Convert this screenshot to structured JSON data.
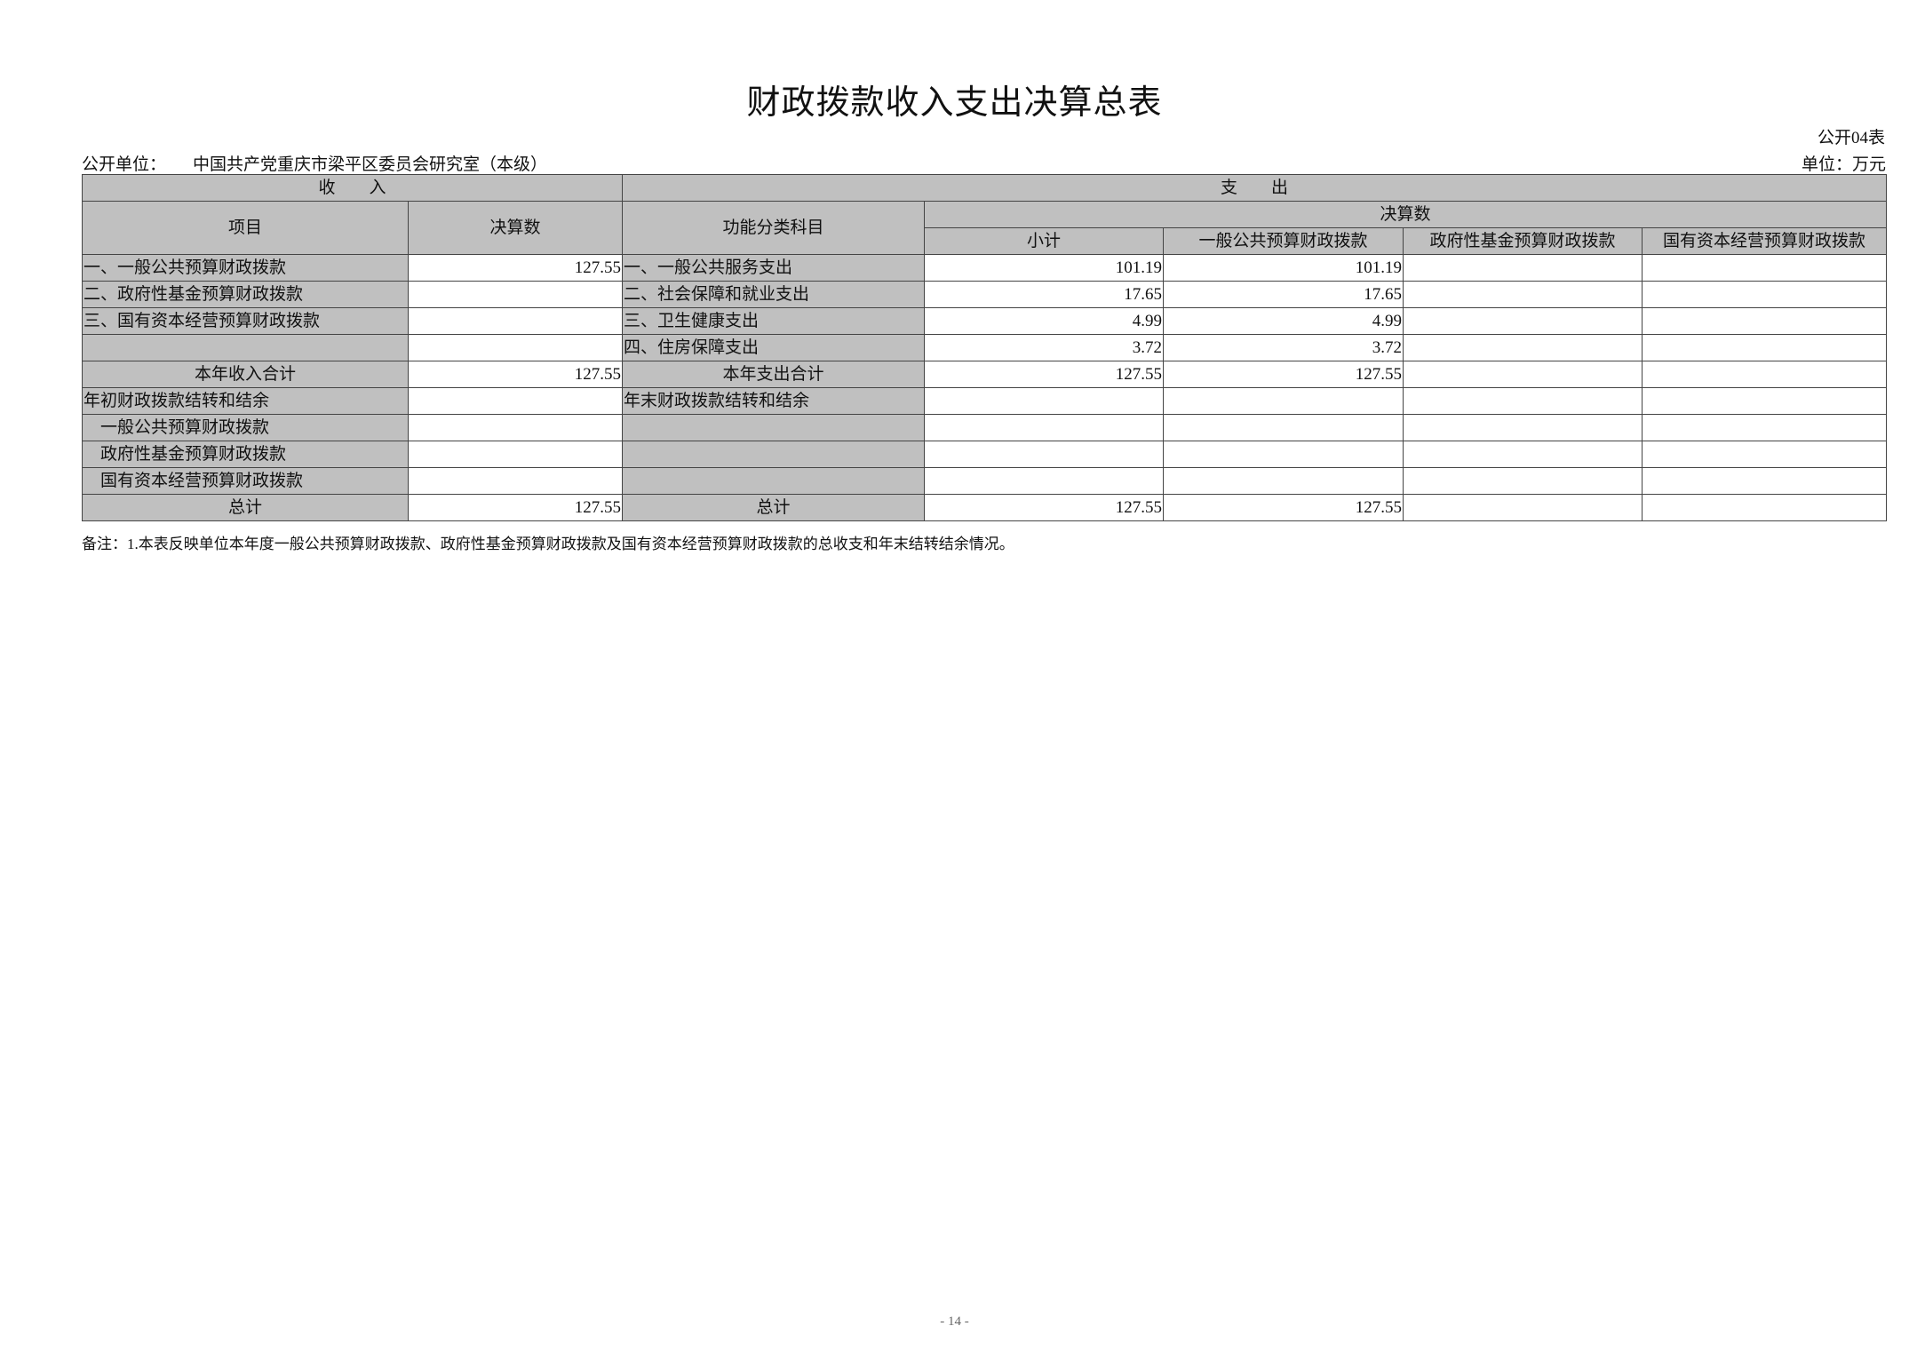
{
  "title": "财政拨款收入支出决算总表",
  "table_no": "公开04表",
  "org_label": "公开单位：",
  "org_name": "中国共产党重庆市梁平区委员会研究室（本级）",
  "unit": "单位：万元",
  "headers": {
    "income": "收　　入",
    "expense": "支　　出",
    "item": "项目",
    "amount": "决算数",
    "func_class": "功能分类科目",
    "final_amount": "决算数",
    "subtotal": "小计",
    "general": "一般公共预算财政拨款",
    "gov_fund": "政府性基金预算财政拨款",
    "state_capital": "国有资本经营预算财政拨款"
  },
  "rows": [
    {
      "income_item": "一、一般公共预算财政拨款",
      "income_amount": "127.55",
      "expense_item": "一、一般公共服务支出",
      "subtotal": "101.19",
      "general": "101.19",
      "gov_fund": "",
      "state_capital": ""
    },
    {
      "income_item": "二、政府性基金预算财政拨款",
      "income_amount": "",
      "expense_item": "二、社会保障和就业支出",
      "subtotal": "17.65",
      "general": "17.65",
      "gov_fund": "",
      "state_capital": ""
    },
    {
      "income_item": "三、国有资本经营预算财政拨款",
      "income_amount": "",
      "expense_item": "三、卫生健康支出",
      "subtotal": "4.99",
      "general": "4.99",
      "gov_fund": "",
      "state_capital": ""
    },
    {
      "income_item": "",
      "income_amount": "",
      "expense_item": "四、住房保障支出",
      "subtotal": "3.72",
      "general": "3.72",
      "gov_fund": "",
      "state_capital": ""
    },
    {
      "income_item": "本年收入合计",
      "income_amount": "127.55",
      "expense_item": "本年支出合计",
      "subtotal": "127.55",
      "general": "127.55",
      "gov_fund": "",
      "state_capital": ""
    },
    {
      "income_item": "年初财政拨款结转和结余",
      "income_amount": "",
      "expense_item": "年末财政拨款结转和结余",
      "subtotal": "",
      "general": "",
      "gov_fund": "",
      "state_capital": ""
    },
    {
      "income_item": "一般公共预算财政拨款",
      "income_amount": "",
      "expense_item": "",
      "subtotal": "",
      "general": "",
      "gov_fund": "",
      "state_capital": ""
    },
    {
      "income_item": "政府性基金预算财政拨款",
      "income_amount": "",
      "expense_item": "",
      "subtotal": "",
      "general": "",
      "gov_fund": "",
      "state_capital": ""
    },
    {
      "income_item": "国有资本经营预算财政拨款",
      "income_amount": "",
      "expense_item": "",
      "subtotal": "",
      "general": "",
      "gov_fund": "",
      "state_capital": ""
    },
    {
      "income_item": "总计",
      "income_amount": "127.55",
      "expense_item": "总计",
      "subtotal": "127.55",
      "general": "127.55",
      "gov_fund": "",
      "state_capital": ""
    }
  ],
  "note": "备注：1.本表反映单位本年度一般公共预算财政拨款、政府性基金预算财政拨款及国有资本经营预算财政拨款的总收支和年末结转结余情况。",
  "page_number": "- 14 -",
  "colors": {
    "header_fill": "#c0c0c0",
    "border": "#444444"
  }
}
